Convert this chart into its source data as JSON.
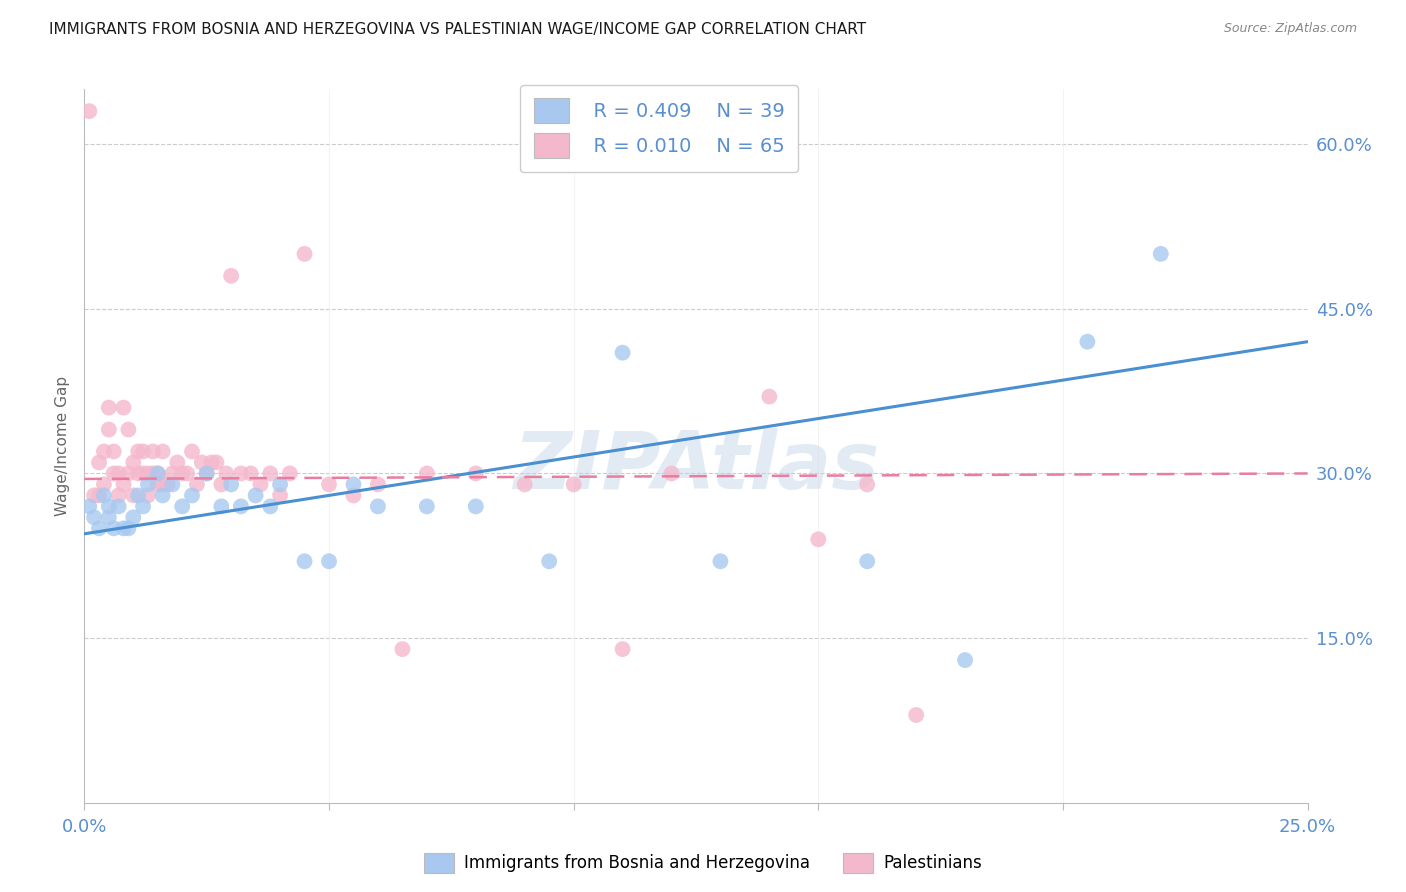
{
  "title": "IMMIGRANTS FROM BOSNIA AND HERZEGOVINA VS PALESTINIAN WAGE/INCOME GAP CORRELATION CHART",
  "source": "Source: ZipAtlas.com",
  "ylabel": "Wage/Income Gap",
  "right_yticks": [
    "60.0%",
    "45.0%",
    "30.0%",
    "15.0%"
  ],
  "right_ytick_vals": [
    0.6,
    0.45,
    0.3,
    0.15
  ],
  "xlim": [
    0.0,
    0.25
  ],
  "ylim": [
    0.0,
    0.65
  ],
  "legend_r_blue": "R = 0.409",
  "legend_n_blue": "N = 39",
  "legend_r_pink": "R = 0.010",
  "legend_n_pink": "N = 65",
  "blue_scatter_x": [
    0.001,
    0.002,
    0.003,
    0.004,
    0.005,
    0.005,
    0.006,
    0.007,
    0.008,
    0.009,
    0.01,
    0.011,
    0.012,
    0.013,
    0.015,
    0.016,
    0.018,
    0.02,
    0.022,
    0.025,
    0.028,
    0.03,
    0.032,
    0.035,
    0.038,
    0.04,
    0.045,
    0.05,
    0.055,
    0.06,
    0.07,
    0.08,
    0.095,
    0.11,
    0.13,
    0.16,
    0.18,
    0.205,
    0.22
  ],
  "blue_scatter_y": [
    0.27,
    0.26,
    0.25,
    0.28,
    0.26,
    0.27,
    0.25,
    0.27,
    0.25,
    0.25,
    0.26,
    0.28,
    0.27,
    0.29,
    0.3,
    0.28,
    0.29,
    0.27,
    0.28,
    0.3,
    0.27,
    0.29,
    0.27,
    0.28,
    0.27,
    0.29,
    0.22,
    0.22,
    0.29,
    0.27,
    0.27,
    0.27,
    0.22,
    0.41,
    0.22,
    0.22,
    0.13,
    0.42,
    0.5
  ],
  "pink_scatter_x": [
    0.001,
    0.002,
    0.003,
    0.003,
    0.004,
    0.004,
    0.005,
    0.005,
    0.006,
    0.006,
    0.007,
    0.007,
    0.008,
    0.008,
    0.009,
    0.009,
    0.01,
    0.01,
    0.011,
    0.011,
    0.012,
    0.012,
    0.013,
    0.013,
    0.014,
    0.014,
    0.015,
    0.015,
    0.016,
    0.016,
    0.017,
    0.018,
    0.019,
    0.02,
    0.021,
    0.022,
    0.023,
    0.024,
    0.025,
    0.026,
    0.027,
    0.028,
    0.029,
    0.03,
    0.032,
    0.034,
    0.036,
    0.038,
    0.04,
    0.042,
    0.045,
    0.05,
    0.055,
    0.06,
    0.065,
    0.07,
    0.08,
    0.09,
    0.1,
    0.11,
    0.12,
    0.14,
    0.15,
    0.16,
    0.17
  ],
  "pink_scatter_y": [
    0.63,
    0.28,
    0.28,
    0.31,
    0.32,
    0.29,
    0.34,
    0.36,
    0.3,
    0.32,
    0.28,
    0.3,
    0.29,
    0.36,
    0.3,
    0.34,
    0.28,
    0.31,
    0.3,
    0.32,
    0.3,
    0.32,
    0.28,
    0.3,
    0.32,
    0.3,
    0.29,
    0.3,
    0.29,
    0.32,
    0.29,
    0.3,
    0.31,
    0.3,
    0.3,
    0.32,
    0.29,
    0.31,
    0.3,
    0.31,
    0.31,
    0.29,
    0.3,
    0.48,
    0.3,
    0.3,
    0.29,
    0.3,
    0.28,
    0.3,
    0.5,
    0.29,
    0.28,
    0.29,
    0.14,
    0.3,
    0.3,
    0.29,
    0.29,
    0.14,
    0.3,
    0.37,
    0.24,
    0.29,
    0.08
  ],
  "blue_color": "#a8c8f0",
  "pink_color": "#f4b8cc",
  "blue_line_color": "#4a8fd0",
  "pink_line_color": "#e87da0",
  "grid_color": "#cccccc",
  "watermark_text": "ZIPAtlas",
  "watermark_color": "#c0d4e8",
  "watermark_alpha": 0.45,
  "background_color": "#ffffff",
  "title_fontsize": 11,
  "tick_label_color": "#5a8fd0"
}
